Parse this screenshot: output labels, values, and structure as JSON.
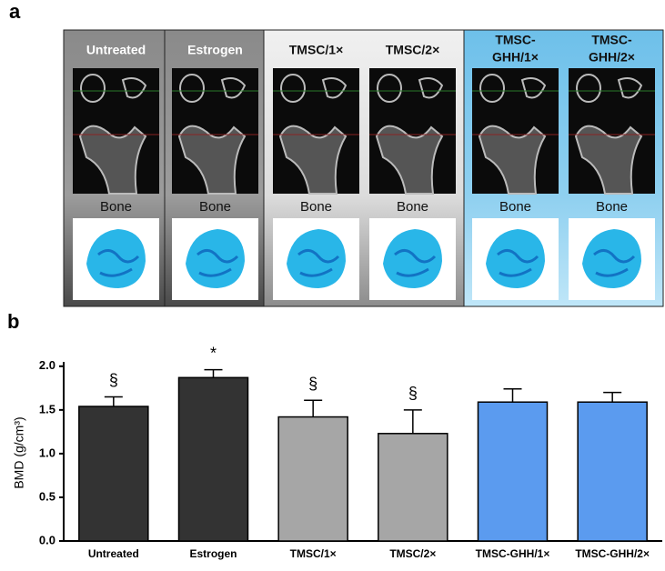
{
  "panel_a": {
    "label": "a",
    "columns": [
      {
        "title": [
          "Untreated"
        ],
        "caption": "Bone"
      },
      {
        "title": [
          "Estrogen"
        ],
        "caption": "Bone"
      },
      {
        "title": [
          "TMSC/1×"
        ],
        "caption": "Bone"
      },
      {
        "title": [
          "TMSC/2×"
        ],
        "caption": "Bone"
      },
      {
        "title": [
          "TMSC-",
          "GHH/1×"
        ],
        "caption": "Bone"
      },
      {
        "title": [
          "TMSC-",
          "GHH/2×"
        ],
        "caption": "Bone"
      }
    ]
  },
  "chart_data": {
    "type": "bar",
    "panel_label": "b",
    "y_label": "BMD (g/cm³)",
    "categories": [
      "Untreated",
      "Estrogen",
      "TMSC/1×",
      "TMSC/2×",
      "TMSC-GHH/1×",
      "TMSC-GHH/2×"
    ],
    "values": [
      1.54,
      1.87,
      1.42,
      1.23,
      1.59,
      1.59
    ],
    "errors": [
      0.11,
      0.09,
      0.19,
      0.27,
      0.15,
      0.11
    ],
    "annotations": [
      "§",
      "*",
      "§",
      "§",
      null,
      null
    ],
    "colors": [
      "#333333",
      "#333333",
      "#a6a6a6",
      "#a6a6a6",
      "#5b9bef",
      "#5b9bef"
    ],
    "ylim": [
      0,
      2.05
    ],
    "yticks": [
      {
        "value": 0,
        "label": "0.0"
      },
      0.5,
      {
        "value": 1,
        "label": "1.0"
      },
      1.5,
      {
        "value": 2,
        "label": "2.0"
      }
    ]
  }
}
